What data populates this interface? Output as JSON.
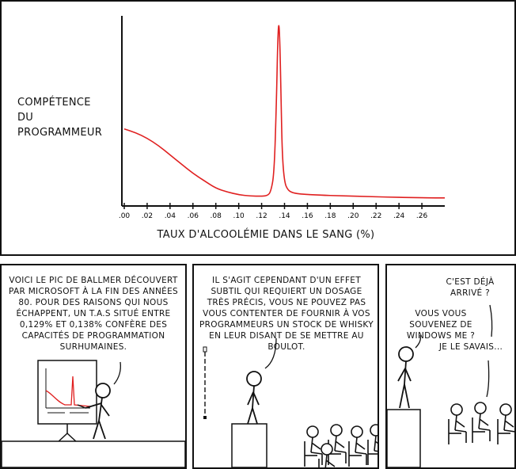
{
  "chart_data": {
    "type": "line",
    "title": "",
    "xlabel": "TAUX D'ALCOOLÉMIE DANS LE SANG (%)",
    "ylabel": "COMPÉTENCE DU PROGRAMMEUR",
    "xlim": [
      0,
      0.28
    ],
    "ylim": [
      0,
      1
    ],
    "tick_labels": [
      ".00",
      ".02",
      ".04",
      ".06",
      ".08",
      ".10",
      ".12",
      ".14",
      ".16",
      ".18",
      ".20",
      ".22",
      ".24",
      ".26"
    ],
    "grid": false,
    "series": [
      {
        "color": "#e02020",
        "x": [
          0.0,
          0.01,
          0.02,
          0.03,
          0.04,
          0.05,
          0.06,
          0.07,
          0.08,
          0.09,
          0.1,
          0.11,
          0.12,
          0.125,
          0.128,
          0.131,
          0.133,
          0.134,
          0.135,
          0.136,
          0.137,
          0.138,
          0.14,
          0.143,
          0.147,
          0.155,
          0.17,
          0.19,
          0.21,
          0.23,
          0.25,
          0.27,
          0.28
        ],
        "y": [
          0.39,
          0.37,
          0.34,
          0.3,
          0.25,
          0.2,
          0.15,
          0.11,
          0.07,
          0.05,
          0.035,
          0.028,
          0.027,
          0.03,
          0.05,
          0.15,
          0.55,
          0.85,
          0.98,
          0.85,
          0.55,
          0.25,
          0.1,
          0.06,
          0.045,
          0.038,
          0.033,
          0.029,
          0.026,
          0.022,
          0.02,
          0.018,
          0.018
        ]
      }
    ]
  },
  "panel2": {
    "caption": "VOICI LE PIC DE BALLMER DÉCOUVERT PAR MICROSOFT À LA FIN DES ANNÉES 80. POUR DES RAISONS QUI NOUS ÉCHAPPENT, UN T.A.S SITUÉ ENTRE 0,129% ET 0,138% CONFÈRE DES CAPACITÉS DE PROGRAMMATION SURHUMAINES."
  },
  "panel3": {
    "caption": "IL S'AGIT CEPENDANT D'UN EFFET SUBTIL QUI REQUIERT UN DOSAGE TRÈS PRÉCIS, VOUS NE POUVEZ PAS VOUS CONTENTER DE FOURNIR À VOS PROGRAMMEURS UN STOCK DE WHISKY EN LEUR DISANT DE SE METTRE AU BOULOT."
  },
  "panel4": {
    "question": "C'EST DÉJÀ ARRIVÉ ?",
    "reply": "VOUS VOUS SOUVENEZ DE WINDOWS ME ?",
    "aside": "JE LE SAVAIS..."
  }
}
